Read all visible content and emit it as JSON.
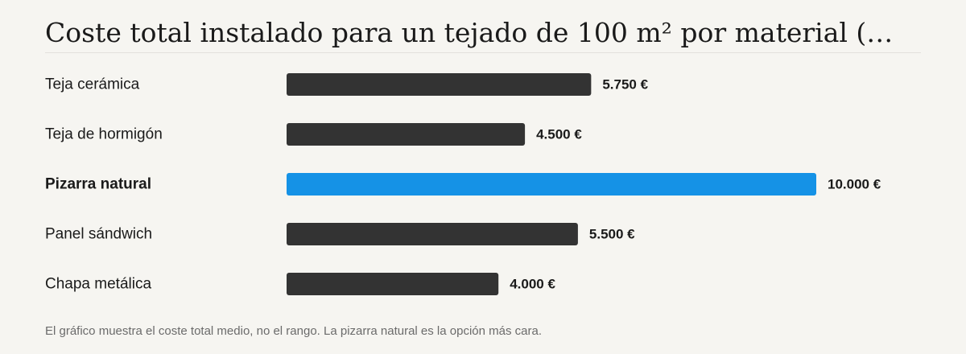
{
  "colors": {
    "default_bar": "#333333",
    "highlight_bar": "#1592e6",
    "background": "#f6f5f1"
  },
  "chart_data": {
    "type": "bar",
    "orientation": "horizontal",
    "title": "Coste total instalado para un tejado de 100 m² por material (…",
    "categories": [
      "Teja cerámica",
      "Teja de hormigón",
      "Pizarra natural",
      "Panel sándwich",
      "Chapa metálica"
    ],
    "values": [
      5750,
      4500,
      10000,
      5500,
      4000
    ],
    "value_labels": [
      "5.750 €",
      "4.500 €",
      "10.000 €",
      "5.500 €",
      "4.000 €"
    ],
    "highlight_index": 2,
    "xlim": [
      0,
      10000
    ],
    "grid": false,
    "legend": "none"
  },
  "note": "El gráfico muestra el coste total medio, no el rango. La pizarra natural es la opción más cara."
}
